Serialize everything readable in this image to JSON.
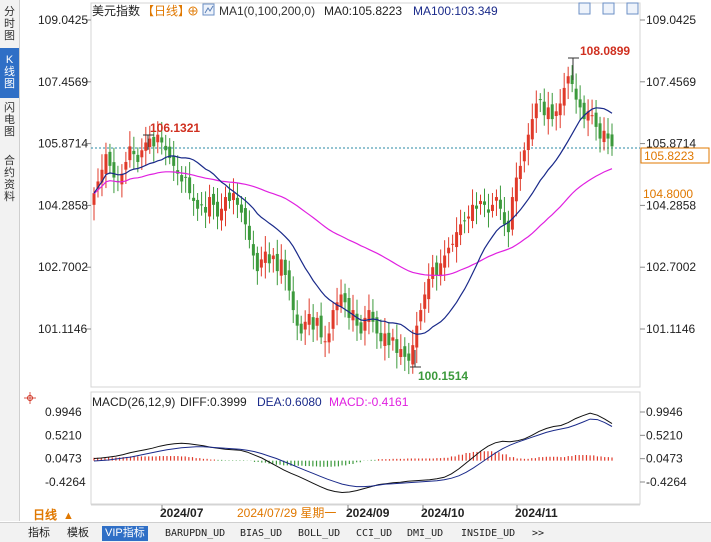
{
  "sidebar": {
    "tabs": [
      {
        "label": "分时图",
        "active": false
      },
      {
        "label": "K线图",
        "active": true
      },
      {
        "label": "闪电图",
        "active": false
      },
      {
        "label": "合约资料",
        "active": false
      }
    ]
  },
  "header": {
    "instrument": "美元指数",
    "period": "【日线】",
    "ma_label": "MA1(0,100,200,0)",
    "ma0_text": "MA0:105.8223",
    "ma100_text": "MA100:103.349",
    "colors": {
      "ma0": "#e020e0",
      "ma100": "#1a2a8a"
    }
  },
  "price_panel": {
    "y_ticks": [
      "109.0425",
      "107.4569",
      "105.8714",
      "104.2858",
      "102.7002",
      "101.1146"
    ],
    "current_price_tag": "105.8223",
    "ref_price_tag": "104.8000",
    "high_annotation": "108.0899",
    "mid_high_annotation": "106.1321",
    "low_annotation": "100.1514"
  },
  "macd_panel": {
    "label": "MACD(26,12,9)",
    "diff_text": "DIFF:0.3999",
    "dea_text": "DEA:0.6080",
    "macd_text": "MACD:-0.4161",
    "y_ticks": [
      "0.9946",
      "0.5210",
      "0.0473",
      "-0.4264"
    ]
  },
  "x_axis": {
    "labels": [
      "2024/07",
      "2024/09",
      "2024/10",
      "2024/11"
    ],
    "crosshair_date": "2024/07/29 星期一"
  },
  "bottom_bar": {
    "period_tag": "日线",
    "tabs": [
      "指标",
      "模板",
      "VIP指标",
      "BARUPDN_UD",
      "BIAS_UD",
      "BOLL_UD",
      "CCI_UD",
      "DMI_UD",
      "INSIDE_UD",
      ">>"
    ]
  },
  "chart_data": {
    "type": "candlestick",
    "y_range": [
      100.15,
      108.09
    ],
    "macd_range": [
      -0.66,
      1.0
    ],
    "close": [
      104.6,
      104.9,
      105.2,
      105.6,
      105.3,
      105.0,
      104.9,
      105.1,
      105.4,
      105.8,
      105.6,
      105.4,
      105.7,
      105.9,
      106.0,
      105.8,
      106.1,
      105.9,
      105.7,
      105.5,
      105.3,
      105.1,
      104.9,
      105.0,
      104.6,
      104.4,
      104.2,
      104.3,
      104.1,
      104.5,
      104.3,
      104.0,
      104.2,
      104.5,
      104.4,
      104.6,
      104.3,
      104.1,
      103.8,
      103.4,
      103.0,
      102.6,
      102.9,
      103.1,
      102.8,
      103.0,
      102.6,
      102.9,
      102.5,
      102.1,
      101.6,
      101.2,
      101.0,
      101.3,
      101.5,
      101.1,
      101.4,
      100.9,
      100.8,
      101.0,
      101.6,
      101.8,
      102.0,
      101.8,
      101.4,
      101.6,
      101.2,
      101.0,
      101.4,
      101.6,
      101.3,
      101.0,
      100.8,
      101.0,
      100.7,
      100.9,
      100.5,
      100.6,
      100.4,
      100.3,
      100.7,
      101.2,
      101.6,
      102.0,
      102.4,
      102.7,
      102.5,
      102.8,
      103.0,
      103.2,
      103.3,
      103.6,
      103.8,
      103.9,
      104.0,
      104.3,
      104.2,
      104.4,
      104.3,
      104.1,
      104.3,
      104.5,
      104.2,
      103.8,
      103.6,
      104.5,
      105.0,
      105.3,
      105.7,
      106.1,
      106.5,
      106.9,
      107.0,
      106.6,
      106.8,
      106.5,
      106.7,
      106.9,
      107.3,
      107.6,
      107.4,
      107.0,
      106.8,
      106.5,
      106.7,
      106.6,
      106.3,
      106.0,
      106.2,
      106.0,
      105.8
    ],
    "diff": [
      0.05,
      0.06,
      0.08,
      0.1,
      0.13,
      0.17,
      0.2,
      0.23,
      0.26,
      0.3,
      0.33,
      0.35,
      0.36,
      0.35,
      0.33,
      0.31,
      0.28,
      0.26,
      0.24,
      0.23,
      0.22,
      0.18,
      0.12,
      0.06,
      -0.02,
      -0.1,
      -0.18,
      -0.25,
      -0.31,
      -0.38,
      -0.45,
      -0.52,
      -0.58,
      -0.62,
      -0.64,
      -0.63,
      -0.6,
      -0.56,
      -0.52,
      -0.48,
      -0.46,
      -0.44,
      -0.43,
      -0.41,
      -0.4,
      -0.39,
      -0.38,
      -0.36,
      -0.33,
      -0.26,
      -0.16,
      -0.04,
      0.08,
      0.2,
      0.3,
      0.37,
      0.4,
      0.39,
      0.41,
      0.45,
      0.52,
      0.6,
      0.66,
      0.7,
      0.72,
      0.78,
      0.86,
      0.92,
      0.97,
      0.93,
      0.85,
      0.76
    ],
    "dea": [
      0.0,
      0.01,
      0.02,
      0.04,
      0.06,
      0.08,
      0.11,
      0.14,
      0.17,
      0.2,
      0.23,
      0.25,
      0.27,
      0.28,
      0.29,
      0.29,
      0.28,
      0.27,
      0.26,
      0.25,
      0.24,
      0.22,
      0.19,
      0.15,
      0.1,
      0.05,
      -0.01,
      -0.07,
      -0.13,
      -0.19,
      -0.25,
      -0.31,
      -0.37,
      -0.42,
      -0.47,
      -0.5,
      -0.52,
      -0.52,
      -0.51,
      -0.49,
      -0.47,
      -0.46,
      -0.45,
      -0.44,
      -0.43,
      -0.42,
      -0.41,
      -0.4,
      -0.38,
      -0.35,
      -0.3,
      -0.23,
      -0.14,
      -0.04,
      0.06,
      0.16,
      0.25,
      0.32,
      0.38,
      0.43,
      0.48,
      0.53,
      0.58,
      0.62,
      0.65,
      0.68,
      0.73,
      0.79,
      0.85,
      0.84,
      0.78,
      0.7
    ]
  }
}
